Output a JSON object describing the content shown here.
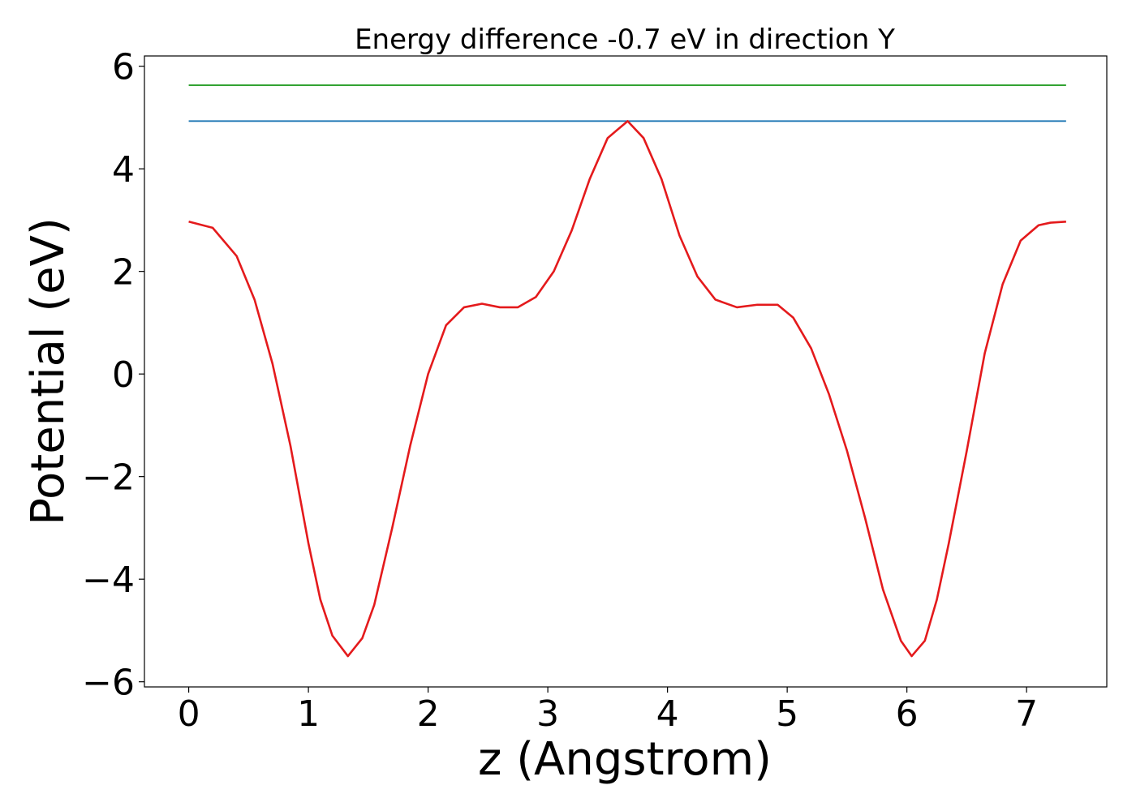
{
  "chart_data": {
    "type": "line",
    "title": "Energy difference -0.7 eV in direction Y",
    "xlabel": "z (Angstrom)",
    "ylabel": "Potential (eV)",
    "xlim": [
      -0.37,
      7.67
    ],
    "ylim": [
      -6.1,
      6.2
    ],
    "x_ticks": [
      0,
      1,
      2,
      3,
      4,
      5,
      6,
      7
    ],
    "x_tick_labels": [
      "0",
      "1",
      "2",
      "3",
      "4",
      "5",
      "6",
      "7"
    ],
    "y_ticks": [
      -6,
      -4,
      -2,
      0,
      2,
      4,
      6
    ],
    "y_tick_labels": [
      "−6",
      "−4",
      "−2",
      "0",
      "2",
      "4",
      "6"
    ],
    "grid": false,
    "series": [
      {
        "color": "#2ca02c",
        "x": [
          0,
          7.33
        ],
        "y": [
          5.63,
          5.63
        ]
      },
      {
        "color": "#1f77b4",
        "x": [
          0,
          7.33
        ],
        "y": [
          4.93,
          4.93
        ]
      },
      {
        "color": "#e41a1c",
        "x": [
          0,
          0.2,
          0.4,
          0.55,
          0.7,
          0.85,
          1.0,
          1.1,
          1.2,
          1.33,
          1.45,
          1.55,
          1.7,
          1.85,
          2.0,
          2.15,
          2.3,
          2.45,
          2.6,
          2.75,
          2.9,
          3.05,
          3.2,
          3.35,
          3.5,
          3.667,
          3.8,
          3.95,
          4.1,
          4.25,
          4.4,
          4.58,
          4.75,
          4.92,
          5.05,
          5.2,
          5.35,
          5.5,
          5.65,
          5.8,
          5.95,
          6.04,
          6.15,
          6.25,
          6.35,
          6.5,
          6.65,
          6.8,
          6.95,
          7.1,
          7.2,
          7.33
        ],
        "y": [
          2.97,
          2.85,
          2.3,
          1.45,
          0.2,
          -1.4,
          -3.3,
          -4.4,
          -5.1,
          -5.5,
          -5.15,
          -4.5,
          -3.0,
          -1.4,
          0.0,
          0.95,
          1.3,
          1.37,
          1.3,
          1.3,
          1.5,
          2.0,
          2.8,
          3.8,
          4.6,
          4.93,
          4.6,
          3.8,
          2.7,
          1.9,
          1.45,
          1.3,
          1.35,
          1.35,
          1.1,
          0.5,
          -0.4,
          -1.5,
          -2.8,
          -4.2,
          -5.2,
          -5.5,
          -5.2,
          -4.4,
          -3.3,
          -1.5,
          0.4,
          1.75,
          2.6,
          2.9,
          2.95,
          2.97
        ]
      }
    ]
  }
}
